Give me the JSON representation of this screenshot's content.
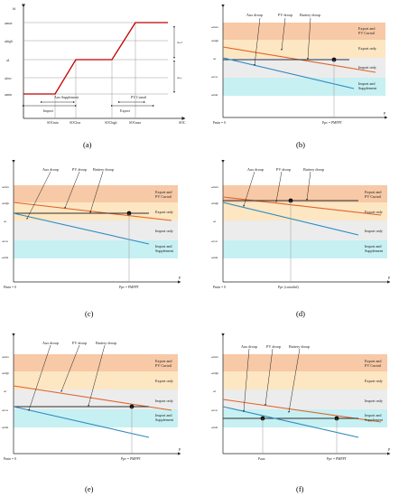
{
  "colors": {
    "droop": "#c00000",
    "pv": "#e0642b",
    "battery": "#2e2e2e",
    "aux": "#2e8bc0",
    "band_export": "#f7c9a6",
    "band_export_only": "#fde6c2",
    "band_import": "#ececec",
    "band_supp": "#c7f0f3",
    "guide": "#888888"
  },
  "panel_a": {
    "caption": "(a)",
    "y_labels": [
      "ωmax",
      "ωhigh",
      "ωl",
      "ωlow",
      "ωmin"
    ],
    "x_labels": [
      "SOCmin",
      "SOClow",
      "SOChigh",
      "SOCmax",
      "SOC"
    ],
    "y_axis_label": "ω",
    "delta_top": "Δω+",
    "delta_bottom": "Δω-",
    "regions": [
      "Aux Supplement",
      "Import",
      "PV Curtail",
      "Export"
    ]
  },
  "panels": [
    {
      "id": "b",
      "caption": "(b)",
      "ylabels": [
        "ωmax",
        "ωhigh",
        "ωl",
        "ωlow",
        "ωmin"
      ],
      "x0": "Pmin = 0",
      "x1": "Ppv = PMPPT",
      "xaxis": "P",
      "bands": [
        "Export and PV Curtail",
        "Export only",
        "Import only",
        "Import and Supplement"
      ],
      "legend": [
        "Aux droop",
        "PV droop",
        "Battery droop"
      ]
    },
    {
      "id": "c",
      "caption": "(c)",
      "ylabels": [
        "ωmax",
        "ωhigh",
        "ωl",
        "ωlow",
        "ωmin"
      ],
      "x0": "Pmin = 0",
      "x1": "Ppv = PMPPT",
      "xaxis": "P",
      "bands": [
        "Export and PV Curtail",
        "Export only",
        "Import only",
        "Import and Supplement"
      ],
      "legend": [
        "Aux droop",
        "PV droop",
        "Battery droop"
      ]
    },
    {
      "id": "d",
      "caption": "(d)",
      "ylabels": [
        "ωmax",
        "ωhigh",
        "ωl",
        "ωlow",
        "ωmin"
      ],
      "x0": "Pmin = 0",
      "x1": "Ppv (curtailed)",
      "xaxis": "P",
      "bands": [
        "Export and PV Curtail",
        "Export only",
        "Import only",
        "Import and Supplement"
      ],
      "legend": [
        "Aux droop",
        "PV droop",
        "Battery droop"
      ]
    },
    {
      "id": "e",
      "caption": "(e)",
      "ylabels": [
        "ωmax",
        "ωhigh",
        "ωl",
        "ωlow",
        "ωmin"
      ],
      "x0": "Pmin = 0",
      "x1": "Ppv = PMPPT",
      "xaxis": "P",
      "bands": [
        "Export and PV Curtail",
        "Export only",
        "Import only",
        "Import and Supplement"
      ],
      "legend": [
        "Aux droop",
        "PV droop",
        "Battery droop"
      ]
    },
    {
      "id": "f",
      "caption": "(f)",
      "ylabels": [
        "ωmax",
        "ωhigh",
        "ωl",
        "ωlow",
        "ωmin"
      ],
      "x0": "Paux",
      "x1": "Ppv = PMPPT",
      "xaxis": "P",
      "bands": [
        "Export and PV Curtail",
        "Export only",
        "Import only",
        "Import and Supplement"
      ],
      "legend": [
        "Aux droop",
        "PV droop",
        "Battery droop"
      ]
    }
  ]
}
